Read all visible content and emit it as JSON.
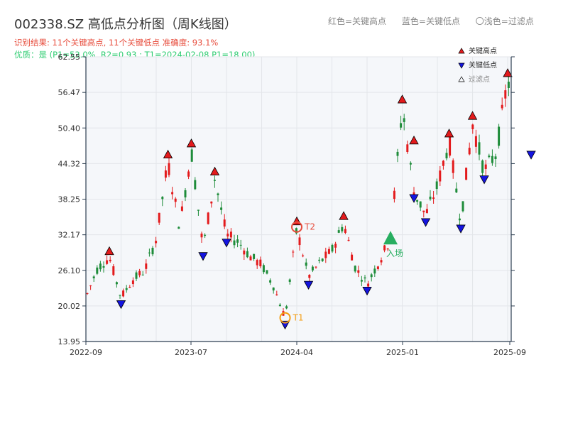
{
  "header": {
    "title": "002338.SZ 高低点分析图（周K线图）",
    "legend_top": [
      "红色=关键高点",
      "蓝色=关键低点",
      "〇浅色=过滤点"
    ],
    "result_line": "识别结果: 11个关键高点, 11个关键低点   准确度: 93.1%",
    "quality_line": "优质：是  (P1=53.0%, R2=0.93 ; T1=2024-02-08 P1=18.00)"
  },
  "colors": {
    "up": "#e31a1c",
    "down": "#1e8c3a",
    "high_marker": "#e31a1c",
    "low_marker": "#1414e0",
    "t1": "#f39c12",
    "t2": "#e74c3c",
    "entry": "#27ae60",
    "plot_bg": "#f5f7fa",
    "grid": "#e3e6ea",
    "axis": "#2c3e50"
  },
  "chart_data": {
    "type": "candlestick",
    "y_ticks": [
      13.95,
      20.02,
      26.1,
      32.17,
      38.25,
      44.32,
      50.4,
      56.47,
      62.55
    ],
    "y_tick_labels": [
      "13.95",
      "20.02",
      "26.10",
      "32.17",
      "38.25",
      "44.32",
      "50.40",
      "56.47",
      "62.55"
    ],
    "ylim": [
      13.95,
      62.55
    ],
    "x_ticks": [
      "2022-09",
      "2023-07",
      "2024-04",
      "2025-01",
      "2025-09"
    ],
    "legend": {
      "placement": "top-right",
      "items": [
        {
          "label": "关键高点",
          "icon": "triangle-up-filled"
        },
        {
          "label": "关键低点",
          "icon": "triangle-down-filled"
        },
        {
          "label": "过滤点",
          "icon": "triangle-up-outline"
        }
      ]
    },
    "key_highs": [
      {
        "date": "2022-11",
        "price": 28.4
      },
      {
        "date": "2023-04",
        "price": 44.9
      },
      {
        "date": "2023-06",
        "price": 46.8
      },
      {
        "date": "2023-08",
        "price": 42.0
      },
      {
        "date": "2024-03",
        "price": 33.5
      },
      {
        "date": "2024-07",
        "price": 34.4
      },
      {
        "date": "2024-12",
        "price": 54.3
      },
      {
        "date": "2025-01",
        "price": 47.3
      },
      {
        "date": "2025-04",
        "price": 48.5
      },
      {
        "date": "2025-06",
        "price": 51.5
      },
      {
        "date": "2025-09",
        "price": 58.8
      }
    ],
    "key_lows": [
      {
        "date": "2022-12",
        "price": 21.3
      },
      {
        "date": "2023-07",
        "price": 29.5
      },
      {
        "date": "2023-09",
        "price": 31.8
      },
      {
        "date": "2024-02",
        "price": 17.8
      },
      {
        "date": "2024-04",
        "price": 24.6
      },
      {
        "date": "2024-09",
        "price": 23.6
      },
      {
        "date": "2025-01",
        "price": 39.4
      },
      {
        "date": "2025-02",
        "price": 35.3
      },
      {
        "date": "2025-05",
        "price": 34.2
      },
      {
        "date": "2025-07",
        "price": 42.6
      },
      {
        "date": "2025-11",
        "price": 46.8
      }
    ],
    "annotations": [
      {
        "label": "T1",
        "date": "2024-02",
        "price": 18.0
      },
      {
        "label": "T2",
        "date": "2024-03",
        "price": 33.5
      },
      {
        "label": "入场",
        "date": "2024-11",
        "price": 31.5
      }
    ],
    "price_path": [
      [
        "2022-09",
        21.5
      ],
      [
        "2022-10",
        26.5
      ],
      [
        "2022-11",
        28.3
      ],
      [
        "2022-12",
        21.5
      ],
      [
        "2023-01",
        24.5
      ],
      [
        "2023-02",
        26.0
      ],
      [
        "2023-03",
        31.5
      ],
      [
        "2023-04",
        44.5
      ],
      [
        "2023-05",
        33.5
      ],
      [
        "2023-06",
        46.5
      ],
      [
        "2023-07",
        29.8
      ],
      [
        "2023-08",
        41.8
      ],
      [
        "2023-09",
        32.0
      ],
      [
        "2023-10",
        31.0
      ],
      [
        "2023-11",
        28.5
      ],
      [
        "2023-12",
        27.0
      ],
      [
        "2024-01",
        23.5
      ],
      [
        "2024-02",
        18.0
      ],
      [
        "2024-03",
        33.2
      ],
      [
        "2024-04",
        25.0
      ],
      [
        "2024-05",
        27.5
      ],
      [
        "2024-06",
        29.5
      ],
      [
        "2024-07",
        34.2
      ],
      [
        "2024-08",
        26.5
      ],
      [
        "2024-09",
        23.8
      ],
      [
        "2024-10",
        27.5
      ],
      [
        "2024-11",
        31.5
      ],
      [
        "2024-12",
        54.0
      ],
      [
        "2025-01",
        39.5
      ],
      [
        "2025-02",
        35.5
      ],
      [
        "2025-03",
        40.5
      ],
      [
        "2025-04",
        48.2
      ],
      [
        "2025-05",
        34.5
      ],
      [
        "2025-06",
        51.2
      ],
      [
        "2025-07",
        43.0
      ],
      [
        "2025-08",
        46.0
      ],
      [
        "2025-09",
        58.5
      ],
      [
        "2025-10",
        53.0
      ],
      [
        "2025-11",
        47.0
      ],
      [
        "2025-12",
        50.0
      ]
    ]
  }
}
